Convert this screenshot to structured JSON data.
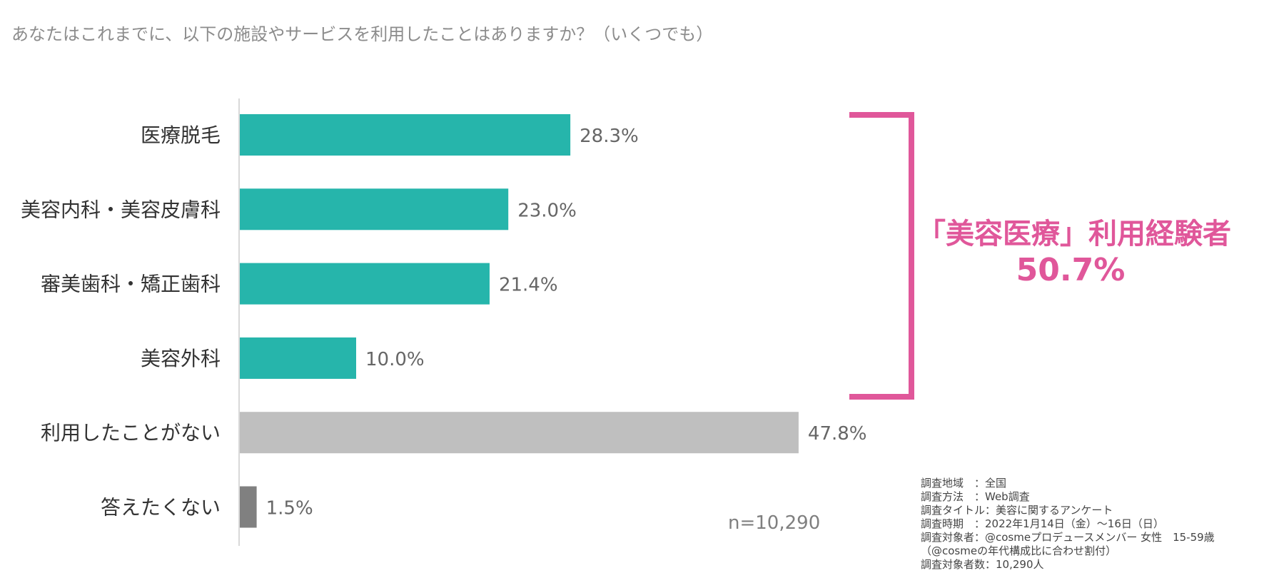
{
  "question": "あなたはこれまでに、以下の施設やサービスを利用したことはありますか？（いくつでも）",
  "chart_data": {
    "type": "bar",
    "orientation": "horizontal",
    "categories": [
      "医療脱毛",
      "美容内科・美容皮膚科",
      "審美歯科・矯正歯科",
      "美容外科",
      "利用したことがない",
      "答えたくない"
    ],
    "values": [
      28.3,
      23.0,
      21.4,
      10.0,
      47.8,
      1.5
    ],
    "value_labels": [
      "28.3%",
      "23.0%",
      "21.4%",
      "10.0%",
      "47.8%",
      "1.5%"
    ],
    "bar_colors": [
      "#26b5ab",
      "#26b5ab",
      "#26b5ab",
      "#26b5ab",
      "#bfbfbf",
      "#808080"
    ],
    "xlim": [
      0,
      60
    ],
    "grid": false,
    "annotation": {
      "title": "「美容医療」利用経験者",
      "value": "50.7%",
      "color": "#e0579a"
    }
  },
  "sample_size": "n=10,290",
  "survey_notes": [
    "調査地域　：全国",
    "調査方法　：Web調査",
    "調査タイトル：美容に関するアンケート",
    "調査時期　：2022年1月14日（金）～16日（日）",
    "調査対象者：@cosmeプロデュースメンバー 女性　15-59歳",
    "（@cosmeの年代構成比に合わせ割付）",
    "調査対象者数：10,290人"
  ]
}
